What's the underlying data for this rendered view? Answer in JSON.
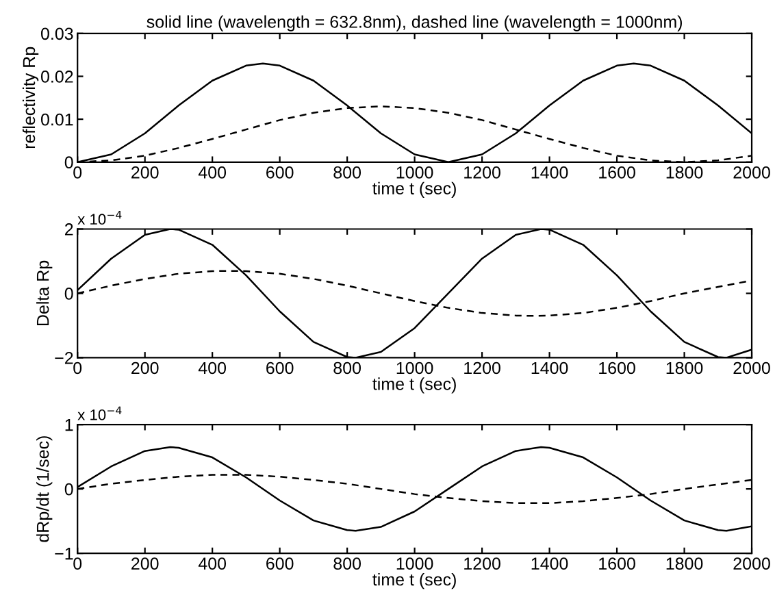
{
  "chart_data": [
    {
      "type": "line",
      "title": "solid line (wavelength = 632.8nm), dashed line (wavelength = 1000nm)",
      "xlabel": "time t (sec)",
      "ylabel": "reflectivity Rp",
      "xlim": [
        0,
        2000
      ],
      "xticks": [
        0,
        200,
        400,
        600,
        800,
        1000,
        1200,
        1400,
        1600,
        1800,
        2000
      ],
      "ylim": [
        0,
        0.03
      ],
      "yticks": [
        0,
        0.01,
        0.02,
        0.03
      ],
      "grid": false,
      "marker": "none",
      "series": [
        {
          "color": "#000000",
          "line_style": "solid",
          "x": [
            0,
            100,
            200,
            300,
            400,
            500,
            550,
            600,
            700,
            800,
            900,
            1000,
            1100,
            1200,
            1300,
            1400,
            1500,
            1600,
            1650,
            1700,
            1800,
            1900,
            2000
          ],
          "values": [
            0,
            0.0018,
            0.0067,
            0.0132,
            0.019,
            0.0225,
            0.023,
            0.0225,
            0.019,
            0.0132,
            0.0067,
            0.0018,
            0,
            0.0018,
            0.0067,
            0.0132,
            0.019,
            0.0225,
            0.023,
            0.0225,
            0.019,
            0.0132,
            0.0067
          ]
        },
        {
          "color": "#000000",
          "line_style": "dashed",
          "x": [
            0,
            100,
            200,
            300,
            400,
            500,
            600,
            700,
            800,
            900,
            1000,
            1100,
            1200,
            1300,
            1400,
            1500,
            1600,
            1700,
            1800,
            1900,
            2000
          ],
          "values": [
            0,
            0.0004,
            0.0015,
            0.0033,
            0.0054,
            0.0076,
            0.0098,
            0.0115,
            0.0126,
            0.013,
            0.0126,
            0.0115,
            0.0098,
            0.0076,
            0.0054,
            0.0033,
            0.0015,
            0.0004,
            0,
            0.0004,
            0.0015
          ]
        }
      ]
    },
    {
      "type": "line",
      "xlabel": "time t (sec)",
      "ylabel": "Delta Rp",
      "annotations": [
        "x 10$^{−4}$"
      ],
      "xlim": [
        0,
        2000
      ],
      "xticks": [
        0,
        200,
        400,
        600,
        800,
        1000,
        1200,
        1400,
        1600,
        1800,
        2000
      ],
      "ylim": [
        -2,
        2
      ],
      "yticks": [
        {
          "value": -2,
          "label": "−2"
        },
        0,
        2
      ],
      "grid": false,
      "marker": "none",
      "series": [
        {
          "color": "#000000",
          "line_style": "solid",
          "x": [
            0,
            100,
            200,
            275,
            300,
            400,
            500,
            600,
            700,
            800,
            825,
            900,
            1000,
            1100,
            1200,
            1300,
            1375,
            1400,
            1500,
            1600,
            1700,
            1800,
            1900,
            1925,
            2000
          ],
          "values": [
            0.1,
            1.08,
            1.82,
            2,
            1.98,
            1.51,
            0.56,
            -0.56,
            -1.51,
            -1.98,
            -2,
            -1.82,
            -1.08,
            0,
            1.08,
            1.82,
            2,
            1.98,
            1.51,
            0.56,
            -0.56,
            -1.51,
            -1.98,
            -2,
            -1.75
          ]
        },
        {
          "color": "#000000",
          "line_style": "dashed",
          "x": [
            0,
            100,
            200,
            300,
            400,
            450,
            500,
            600,
            700,
            800,
            900,
            1000,
            1100,
            1200,
            1300,
            1350,
            1400,
            1500,
            1600,
            1700,
            1800,
            1900,
            2000
          ],
          "values": [
            0,
            0.24,
            0.45,
            0.61,
            0.69,
            0.7,
            0.69,
            0.61,
            0.45,
            0.24,
            0,
            -0.24,
            -0.45,
            -0.61,
            -0.69,
            -0.7,
            -0.69,
            -0.61,
            -0.45,
            -0.24,
            0,
            0.2,
            0.4
          ]
        }
      ]
    },
    {
      "type": "line",
      "xlabel": "time t (sec)",
      "ylabel": "dRp/dt (1/sec)",
      "annotations": [
        "x 10$^{−4}$"
      ],
      "xlim": [
        0,
        2000
      ],
      "xticks": [
        0,
        200,
        400,
        600,
        800,
        1000,
        1200,
        1400,
        1600,
        1800,
        2000
      ],
      "ylim": [
        -1,
        1
      ],
      "yticks": [
        {
          "value": -1,
          "label": "−1"
        },
        0,
        1
      ],
      "grid": false,
      "marker": "none",
      "series": [
        {
          "color": "#000000",
          "line_style": "solid",
          "x": [
            0,
            100,
            200,
            275,
            300,
            400,
            500,
            600,
            700,
            800,
            825,
            900,
            1000,
            1100,
            1200,
            1300,
            1375,
            1400,
            1500,
            1600,
            1700,
            1800,
            1900,
            1925,
            2000
          ],
          "values": [
            0.03,
            0.35,
            0.59,
            0.65,
            0.64,
            0.49,
            0.18,
            -0.18,
            -0.49,
            -0.64,
            -0.65,
            -0.59,
            -0.35,
            0,
            0.35,
            0.59,
            0.65,
            0.64,
            0.49,
            0.18,
            -0.18,
            -0.49,
            -0.64,
            -0.65,
            -0.58
          ]
        },
        {
          "color": "#000000",
          "line_style": "dashed",
          "x": [
            0,
            100,
            200,
            300,
            400,
            450,
            500,
            600,
            700,
            800,
            900,
            1000,
            1100,
            1200,
            1300,
            1350,
            1400,
            1500,
            1600,
            1700,
            1800,
            1900,
            2000
          ],
          "values": [
            0,
            0.08,
            0.14,
            0.19,
            0.22,
            0.22,
            0.22,
            0.19,
            0.14,
            0.08,
            0,
            -0.08,
            -0.14,
            -0.19,
            -0.22,
            -0.22,
            -0.22,
            -0.19,
            -0.14,
            -0.08,
            0,
            0.07,
            0.14
          ]
        }
      ]
    }
  ]
}
